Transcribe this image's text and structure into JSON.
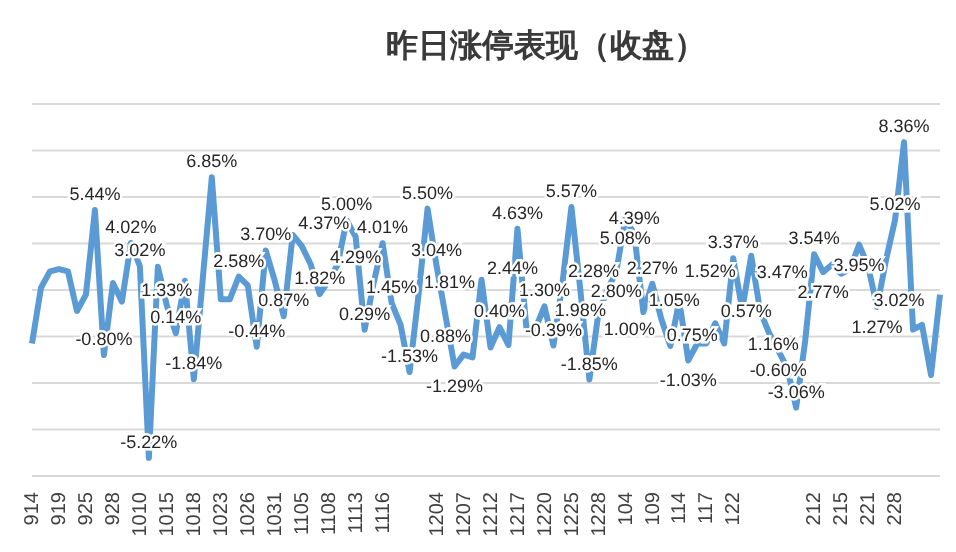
{
  "chart_data": {
    "type": "line",
    "title": "昨日涨停表现（收盘）",
    "categories": [
      "914",
      null,
      null,
      "919",
      null,
      null,
      "925",
      null,
      null,
      "928",
      null,
      null,
      "1010",
      null,
      null,
      "1015",
      null,
      null,
      "1018",
      null,
      null,
      "1023",
      null,
      null,
      "1026",
      null,
      null,
      "1031",
      null,
      null,
      "1105",
      null,
      null,
      "1108",
      null,
      null,
      "1113",
      null,
      null,
      "1116",
      null,
      null,
      null,
      null,
      null,
      "1204",
      null,
      null,
      "1207",
      null,
      null,
      "1212",
      null,
      null,
      "1217",
      null,
      null,
      "1220",
      null,
      null,
      "1225",
      null,
      null,
      "1228",
      null,
      null,
      "104",
      null,
      null,
      "109",
      null,
      null,
      "114",
      null,
      null,
      "117",
      null,
      null,
      "122",
      null,
      null,
      null,
      null,
      null,
      null,
      null,
      null,
      "212",
      null,
      null,
      "215",
      null,
      null,
      "221",
      null,
      null,
      "228",
      null,
      null,
      null,
      null,
      null
    ],
    "values": [
      -0.3,
      2.1,
      2.8,
      2.9,
      2.8,
      1.1,
      1.8,
      5.44,
      -0.8,
      2.3,
      1.5,
      4.02,
      3.02,
      -5.22,
      3.0,
      1.33,
      0.14,
      2.4,
      -1.84,
      2.5,
      6.85,
      1.6,
      1.6,
      2.58,
      2.2,
      -0.44,
      3.7,
      2.4,
      0.87,
      4.37,
      3.9,
      3.1,
      1.82,
      2.4,
      3.1,
      5.0,
      4.29,
      0.29,
      2.3,
      4.01,
      1.45,
      0.5,
      -1.53,
      1.81,
      5.5,
      3.04,
      0.88,
      -1.29,
      -0.78,
      -0.9,
      2.44,
      -0.47,
      0.4,
      -0.37,
      4.63,
      0.34,
      0.34,
      1.3,
      -0.39,
      2.28,
      5.57,
      1.98,
      -1.85,
      1.0,
      2.0,
      2.8,
      5.08,
      4.39,
      1.05,
      2.27,
      0.75,
      -0.4,
      1.52,
      -1.03,
      -0.3,
      -0.3,
      0.57,
      -0.3,
      3.37,
      1.16,
      3.47,
      1.08,
      0.14,
      -0.6,
      -1.34,
      -3.06,
      -0.2,
      3.54,
      2.77,
      3.1,
      2.7,
      2.9,
      3.95,
      3.02,
      1.27,
      3.3,
      5.02,
      8.36,
      0.3,
      0.5,
      -1.66,
      1.8
    ],
    "value_labels": [
      null,
      null,
      null,
      null,
      null,
      null,
      null,
      "5.44%",
      "-0.80%",
      null,
      null,
      "4.02%",
      "3.02%",
      "-5.22%",
      null,
      "1.33%",
      "0.14%",
      null,
      "-1.84%",
      null,
      "6.85%",
      null,
      null,
      "2.58%",
      null,
      "-0.44%",
      "3.70%",
      null,
      "0.87%",
      "4.37%",
      null,
      null,
      "1.82%",
      null,
      null,
      "5.00%",
      "4.29%",
      "0.29%",
      null,
      "4.01%",
      "1.45%",
      null,
      "-1.53%",
      "1.81%",
      "5.50%",
      "3.04%",
      "0.88%",
      "-1.29%",
      null,
      null,
      "2.44%",
      null,
      "0.40%",
      null,
      "4.63%",
      null,
      null,
      "1.30%",
      "-0.39%",
      "2.28%",
      "5.57%",
      "1.98%",
      "-1.85%",
      "1.00%",
      null,
      "2.80%",
      "5.08%",
      "4.39%",
      "1.05%",
      "2.27%",
      "0.75%",
      null,
      "1.52%",
      "-1.03%",
      null,
      null,
      "0.57%",
      null,
      "3.37%",
      "1.16%",
      "3.47%",
      null,
      null,
      "-0.60%",
      null,
      "-3.06%",
      null,
      "3.54%",
      "2.77%",
      null,
      null,
      null,
      "3.95%",
      "3.02%",
      "1.27%",
      null,
      "5.02%",
      "8.36%",
      null,
      null,
      null,
      null
    ],
    "color": "#5b9bd5",
    "marker": "none",
    "grid": "y",
    "tick_labels": "x"
  }
}
